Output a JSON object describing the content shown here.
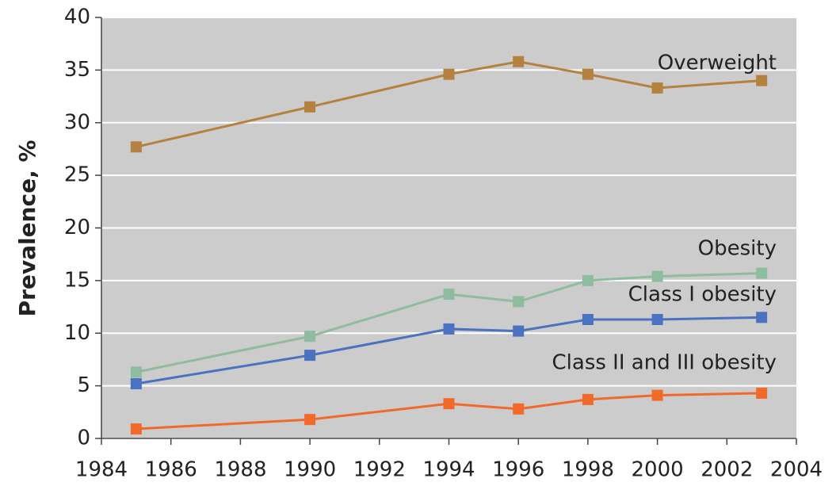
{
  "chart_data": {
    "type": "line",
    "y_label": "Prevalence, %",
    "x": [
      1985,
      1990,
      1994,
      1996,
      1998,
      2000,
      2003
    ],
    "series": [
      {
        "name": "Overweight",
        "color": "#b5813f",
        "values": [
          27.7,
          31.5,
          34.6,
          35.8,
          34.6,
          33.3,
          34.0
        ]
      },
      {
        "name": "Obesity",
        "color": "#8fbc9e",
        "values": [
          6.3,
          9.7,
          13.7,
          13.0,
          15.0,
          15.4,
          15.7
        ]
      },
      {
        "name": "Class I obesity",
        "color": "#4a72c0",
        "values": [
          5.2,
          7.9,
          10.4,
          10.2,
          11.3,
          11.3,
          11.5
        ]
      },
      {
        "name": "Class II and III obesity",
        "color": "#f26a2a",
        "values": [
          0.9,
          1.8,
          3.3,
          2.8,
          3.7,
          4.1,
          4.3
        ]
      }
    ],
    "xlim": [
      1984,
      2004
    ],
    "xticks": [
      1984,
      1986,
      1988,
      1990,
      1992,
      1994,
      1996,
      1998,
      2000,
      2002,
      2004
    ],
    "ylim": [
      0,
      40
    ],
    "yticks": [
      0,
      5,
      10,
      15,
      20,
      25,
      30,
      35,
      40
    ],
    "grid": true
  }
}
